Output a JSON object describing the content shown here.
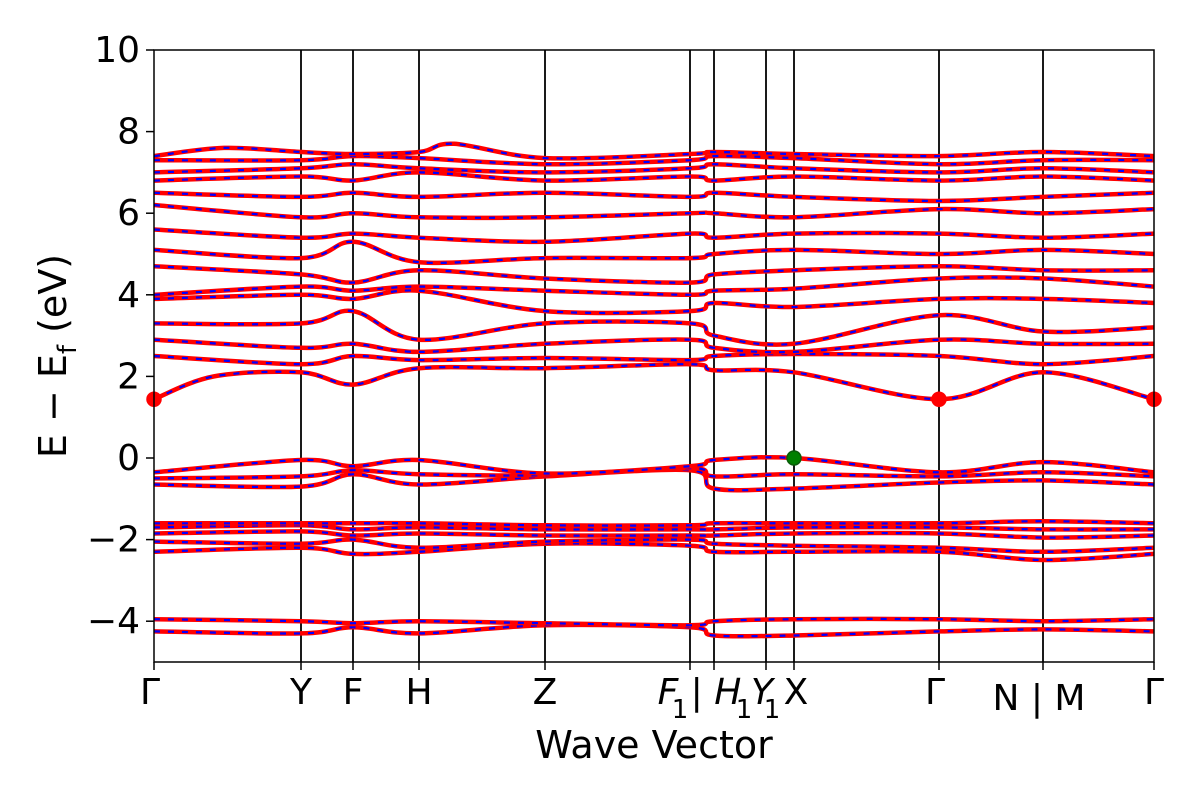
{
  "chart_data": {
    "type": "line",
    "title": "",
    "xlabel": "Wave Vector",
    "ylabel": "E − E",
    "ylabel_sub": "f",
    "ylabel_unit": " (eV)",
    "ylim": [
      -5,
      10
    ],
    "yticks": [
      {
        "value": -4,
        "label": "−4"
      },
      {
        "value": -2,
        "label": "−2"
      },
      {
        "value": 0,
        "label": "0"
      },
      {
        "value": 2,
        "label": "2"
      },
      {
        "value": 4,
        "label": "4"
      },
      {
        "value": 6,
        "label": "6"
      },
      {
        "value": 8,
        "label": "8"
      },
      {
        "value": 10,
        "label": "10"
      }
    ],
    "kpath_length": 1.0,
    "high_symmetry_points": [
      {
        "k": 0.0,
        "label": "Γ"
      },
      {
        "k": 0.147,
        "label": "Y"
      },
      {
        "k": 0.199,
        "label": "F"
      },
      {
        "k": 0.265,
        "label": "H"
      },
      {
        "k": 0.391,
        "label": "Z"
      },
      {
        "k": 0.536,
        "label": "F1|"
      },
      {
        "k": 0.56,
        "label": "H1"
      },
      {
        "k": 0.612,
        "label": "Y1"
      },
      {
        "k": 0.64,
        "label": "X"
      },
      {
        "k": 0.785,
        "label": "Γ"
      },
      {
        "k": 0.889,
        "label": "N | M"
      },
      {
        "k": 1.0,
        "label": "Γ"
      }
    ],
    "tick_labels_text": [
      "Γ",
      "Y",
      "F",
      "H",
      "Z",
      "F",
      "1",
      "| H",
      "1",
      "Y",
      "1",
      "X",
      "Γ",
      "N | M",
      "Γ"
    ],
    "band_colors": {
      "primary": "#ff0000",
      "dashed": "#0000ff"
    },
    "markers": [
      {
        "k": 0.0,
        "E": 1.44,
        "color": "#ff0000",
        "meaning": "CBM"
      },
      {
        "k": 0.785,
        "E": 1.44,
        "color": "#ff0000",
        "meaning": "CBM"
      },
      {
        "k": 1.0,
        "E": 1.44,
        "color": "#ff0000",
        "meaning": "CBM"
      },
      {
        "k": 0.64,
        "E": 0.0,
        "color": "#008000",
        "meaning": "VBM"
      }
    ],
    "bands": [
      [
        [
          0,
          -4.25
        ],
        [
          0.147,
          -4.3
        ],
        [
          0.199,
          -4.15
        ],
        [
          0.265,
          -4.3
        ],
        [
          0.391,
          -4.1
        ],
        [
          0.536,
          -4.15
        ],
        [
          0.56,
          -4.35
        ],
        [
          0.64,
          -4.35
        ],
        [
          0.785,
          -4.25
        ],
        [
          0.889,
          -4.2
        ],
        [
          1.0,
          -4.25
        ]
      ],
      [
        [
          0,
          -3.95
        ],
        [
          0.147,
          -4.0
        ],
        [
          0.199,
          -4.05
        ],
        [
          0.265,
          -4.0
        ],
        [
          0.391,
          -4.05
        ],
        [
          0.536,
          -4.1
        ],
        [
          0.56,
          -4.0
        ],
        [
          0.64,
          -3.95
        ],
        [
          0.785,
          -3.95
        ],
        [
          0.889,
          -4.0
        ],
        [
          1.0,
          -3.95
        ]
      ],
      [
        [
          0,
          -2.3
        ],
        [
          0.147,
          -2.2
        ],
        [
          0.199,
          -2.35
        ],
        [
          0.265,
          -2.3
        ],
        [
          0.391,
          -2.1
        ],
        [
          0.536,
          -2.15
        ],
        [
          0.56,
          -2.3
        ],
        [
          0.64,
          -2.3
        ],
        [
          0.785,
          -2.3
        ],
        [
          0.889,
          -2.5
        ],
        [
          1.0,
          -2.35
        ]
      ],
      [
        [
          0,
          -2.05
        ],
        [
          0.147,
          -2.1
        ],
        [
          0.199,
          -2.0
        ],
        [
          0.265,
          -2.2
        ],
        [
          0.391,
          -2.05
        ],
        [
          0.536,
          -2.0
        ],
        [
          0.56,
          -2.1
        ],
        [
          0.64,
          -2.15
        ],
        [
          0.785,
          -2.2
        ],
        [
          0.889,
          -2.3
        ],
        [
          1.0,
          -2.2
        ]
      ],
      [
        [
          0,
          -1.85
        ],
        [
          0.147,
          -1.8
        ],
        [
          0.199,
          -1.9
        ],
        [
          0.265,
          -1.85
        ],
        [
          0.391,
          -1.9
        ],
        [
          0.536,
          -1.9
        ],
        [
          0.56,
          -1.9
        ],
        [
          0.64,
          -1.85
        ],
        [
          0.785,
          -1.85
        ],
        [
          0.889,
          -1.95
        ],
        [
          1.0,
          -1.9
        ]
      ],
      [
        [
          0,
          -1.7
        ],
        [
          0.147,
          -1.65
        ],
        [
          0.199,
          -1.75
        ],
        [
          0.265,
          -1.7
        ],
        [
          0.391,
          -1.75
        ],
        [
          0.536,
          -1.75
        ],
        [
          0.56,
          -1.75
        ],
        [
          0.64,
          -1.7
        ],
        [
          0.785,
          -1.7
        ],
        [
          0.889,
          -1.75
        ],
        [
          1.0,
          -1.75
        ]
      ],
      [
        [
          0,
          -1.6
        ],
        [
          0.147,
          -1.6
        ],
        [
          0.199,
          -1.6
        ],
        [
          0.265,
          -1.6
        ],
        [
          0.391,
          -1.65
        ],
        [
          0.536,
          -1.65
        ],
        [
          0.56,
          -1.6
        ],
        [
          0.64,
          -1.6
        ],
        [
          0.785,
          -1.6
        ],
        [
          0.889,
          -1.55
        ],
        [
          1.0,
          -1.6
        ]
      ],
      [
        [
          0,
          -0.65
        ],
        [
          0.147,
          -0.7
        ],
        [
          0.199,
          -0.4
        ],
        [
          0.265,
          -0.65
        ],
        [
          0.391,
          -0.45
        ],
        [
          0.536,
          -0.3
        ],
        [
          0.56,
          -0.75
        ],
        [
          0.64,
          -0.75
        ],
        [
          0.785,
          -0.6
        ],
        [
          0.889,
          -0.55
        ],
        [
          1.0,
          -0.65
        ]
      ],
      [
        [
          0,
          -0.5
        ],
        [
          0.147,
          -0.45
        ],
        [
          0.199,
          -0.3
        ],
        [
          0.265,
          -0.4
        ],
        [
          0.391,
          -0.42
        ],
        [
          0.536,
          -0.25
        ],
        [
          0.56,
          -0.45
        ],
        [
          0.64,
          -0.4
        ],
        [
          0.785,
          -0.45
        ],
        [
          0.889,
          -0.35
        ],
        [
          1.0,
          -0.45
        ]
      ],
      [
        [
          0,
          -0.35
        ],
        [
          0.147,
          -0.05
        ],
        [
          0.199,
          -0.2
        ],
        [
          0.265,
          -0.05
        ],
        [
          0.391,
          -0.38
        ],
        [
          0.536,
          -0.2
        ],
        [
          0.56,
          -0.05
        ],
        [
          0.64,
          0.0
        ],
        [
          0.785,
          -0.35
        ],
        [
          0.889,
          -0.1
        ],
        [
          1.0,
          -0.35
        ]
      ],
      [
        [
          0,
          1.44
        ],
        [
          0.06,
          2.0
        ],
        [
          0.147,
          2.1
        ],
        [
          0.199,
          1.8
        ],
        [
          0.265,
          2.2
        ],
        [
          0.391,
          2.2
        ],
        [
          0.536,
          2.3
        ],
        [
          0.56,
          2.15
        ],
        [
          0.64,
          2.1
        ],
        [
          0.785,
          1.44
        ],
        [
          0.889,
          2.1
        ],
        [
          1.0,
          1.44
        ]
      ],
      [
        [
          0,
          2.5
        ],
        [
          0.147,
          2.3
        ],
        [
          0.199,
          2.5
        ],
        [
          0.265,
          2.4
        ],
        [
          0.391,
          2.45
        ],
        [
          0.536,
          2.4
        ],
        [
          0.56,
          2.5
        ],
        [
          0.64,
          2.55
        ],
        [
          0.785,
          2.5
        ],
        [
          0.889,
          2.3
        ],
        [
          1.0,
          2.5
        ]
      ],
      [
        [
          0,
          2.9
        ],
        [
          0.147,
          2.7
        ],
        [
          0.199,
          2.8
        ],
        [
          0.265,
          2.6
        ],
        [
          0.391,
          2.8
        ],
        [
          0.536,
          2.9
        ],
        [
          0.56,
          2.7
        ],
        [
          0.64,
          2.6
        ],
        [
          0.785,
          2.9
        ],
        [
          0.889,
          2.8
        ],
        [
          1.0,
          2.8
        ]
      ],
      [
        [
          0,
          3.3
        ],
        [
          0.147,
          3.3
        ],
        [
          0.199,
          3.6
        ],
        [
          0.265,
          2.9
        ],
        [
          0.391,
          3.3
        ],
        [
          0.536,
          3.3
        ],
        [
          0.56,
          3.0
        ],
        [
          0.64,
          2.8
        ],
        [
          0.785,
          3.5
        ],
        [
          0.889,
          3.1
        ],
        [
          1.0,
          3.2
        ]
      ],
      [
        [
          0,
          3.9
        ],
        [
          0.147,
          4.0
        ],
        [
          0.199,
          3.9
        ],
        [
          0.265,
          4.1
        ],
        [
          0.391,
          3.6
        ],
        [
          0.536,
          3.6
        ],
        [
          0.56,
          3.8
        ],
        [
          0.64,
          3.7
        ],
        [
          0.785,
          3.9
        ],
        [
          0.889,
          3.9
        ],
        [
          1.0,
          3.8
        ]
      ],
      [
        [
          0,
          4.0
        ],
        [
          0.147,
          4.2
        ],
        [
          0.199,
          4.1
        ],
        [
          0.265,
          4.2
        ],
        [
          0.391,
          4.1
        ],
        [
          0.536,
          4.0
        ],
        [
          0.56,
          4.1
        ],
        [
          0.64,
          4.15
        ],
        [
          0.785,
          4.4
        ],
        [
          0.889,
          4.4
        ],
        [
          1.0,
          4.2
        ]
      ],
      [
        [
          0,
          4.7
        ],
        [
          0.147,
          4.5
        ],
        [
          0.199,
          4.3
        ],
        [
          0.265,
          4.6
        ],
        [
          0.391,
          4.4
        ],
        [
          0.536,
          4.3
        ],
        [
          0.56,
          4.5
        ],
        [
          0.64,
          4.6
        ],
        [
          0.785,
          4.7
        ],
        [
          0.889,
          4.6
        ],
        [
          1.0,
          4.6
        ]
      ],
      [
        [
          0,
          5.1
        ],
        [
          0.147,
          4.9
        ],
        [
          0.199,
          5.3
        ],
        [
          0.265,
          4.8
        ],
        [
          0.391,
          4.9
        ],
        [
          0.536,
          4.9
        ],
        [
          0.56,
          5.0
        ],
        [
          0.64,
          5.1
        ],
        [
          0.785,
          5.0
        ],
        [
          0.889,
          5.1
        ],
        [
          1.0,
          5.0
        ]
      ],
      [
        [
          0,
          5.6
        ],
        [
          0.147,
          5.4
        ],
        [
          0.199,
          5.5
        ],
        [
          0.265,
          5.4
        ],
        [
          0.391,
          5.3
        ],
        [
          0.536,
          5.5
        ],
        [
          0.56,
          5.4
        ],
        [
          0.64,
          5.5
        ],
        [
          0.785,
          5.5
        ],
        [
          0.889,
          5.4
        ],
        [
          1.0,
          5.5
        ]
      ],
      [
        [
          0,
          6.2
        ],
        [
          0.147,
          5.9
        ],
        [
          0.199,
          6.0
        ],
        [
          0.265,
          5.9
        ],
        [
          0.391,
          5.9
        ],
        [
          0.536,
          6.0
        ],
        [
          0.56,
          6.0
        ],
        [
          0.64,
          5.9
        ],
        [
          0.785,
          6.1
        ],
        [
          0.889,
          6.0
        ],
        [
          1.0,
          6.1
        ]
      ],
      [
        [
          0,
          6.5
        ],
        [
          0.147,
          6.4
        ],
        [
          0.199,
          6.5
        ],
        [
          0.265,
          6.4
        ],
        [
          0.391,
          6.5
        ],
        [
          0.536,
          6.4
        ],
        [
          0.56,
          6.5
        ],
        [
          0.64,
          6.4
        ],
        [
          0.785,
          6.3
        ],
        [
          0.889,
          6.4
        ],
        [
          1.0,
          6.5
        ]
      ],
      [
        [
          0,
          6.8
        ],
        [
          0.147,
          6.9
        ],
        [
          0.199,
          6.8
        ],
        [
          0.265,
          7.0
        ],
        [
          0.391,
          6.8
        ],
        [
          0.536,
          6.9
        ],
        [
          0.56,
          6.8
        ],
        [
          0.64,
          6.9
        ],
        [
          0.785,
          6.8
        ],
        [
          0.889,
          6.9
        ],
        [
          1.0,
          6.8
        ]
      ],
      [
        [
          0,
          7.0
        ],
        [
          0.147,
          7.1
        ],
        [
          0.199,
          7.2
        ],
        [
          0.265,
          7.1
        ],
        [
          0.391,
          7.0
        ],
        [
          0.536,
          7.1
        ],
        [
          0.56,
          7.2
        ],
        [
          0.64,
          7.1
        ],
        [
          0.785,
          7.0
        ],
        [
          0.889,
          7.1
        ],
        [
          1.0,
          7.0
        ]
      ],
      [
        [
          0,
          7.3
        ],
        [
          0.147,
          7.3
        ],
        [
          0.199,
          7.4
        ],
        [
          0.265,
          7.35
        ],
        [
          0.391,
          7.2
        ],
        [
          0.536,
          7.3
        ],
        [
          0.56,
          7.4
        ],
        [
          0.64,
          7.35
        ],
        [
          0.785,
          7.2
        ],
        [
          0.889,
          7.3
        ],
        [
          1.0,
          7.3
        ]
      ],
      [
        [
          0,
          7.4
        ],
        [
          0.07,
          7.6
        ],
        [
          0.147,
          7.5
        ],
        [
          0.199,
          7.45
        ],
        [
          0.265,
          7.5
        ],
        [
          0.3,
          7.7
        ],
        [
          0.391,
          7.35
        ],
        [
          0.536,
          7.45
        ],
        [
          0.56,
          7.5
        ],
        [
          0.64,
          7.45
        ],
        [
          0.785,
          7.4
        ],
        [
          0.889,
          7.5
        ],
        [
          1.0,
          7.4
        ]
      ]
    ]
  }
}
